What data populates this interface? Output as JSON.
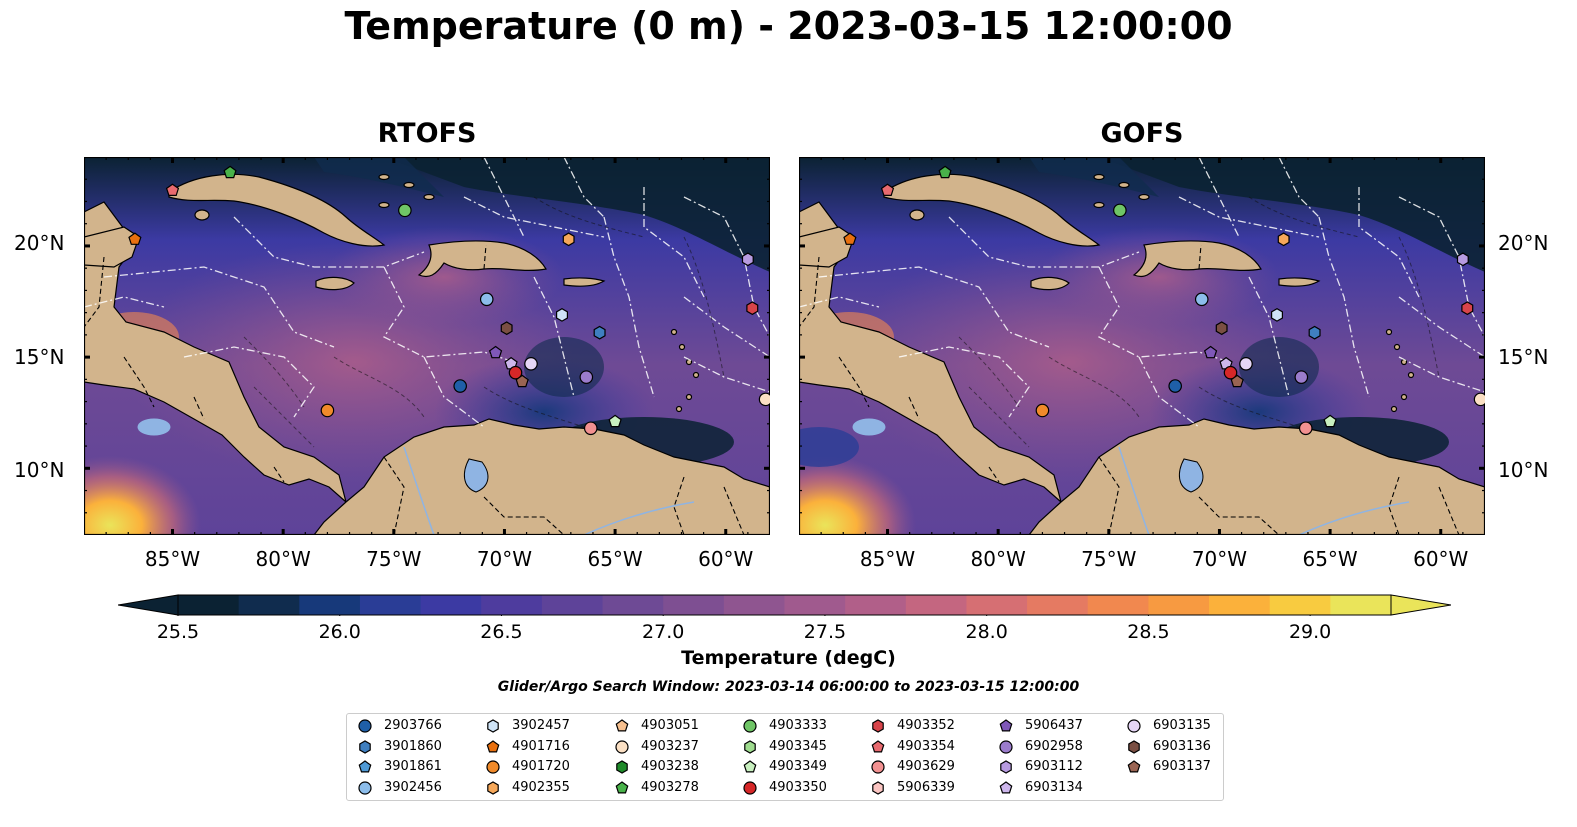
{
  "title": "Temperature (0 m) - 2023-03-15 12:00:00",
  "panels": [
    {
      "title": "RTOFS"
    },
    {
      "title": "GOFS"
    }
  ],
  "axes": {
    "x_ticks": [
      "85°W",
      "80°W",
      "75°W",
      "70°W",
      "65°W",
      "60°W"
    ],
    "x_tick_values": [
      -85,
      -80,
      -75,
      -70,
      -65,
      -60
    ],
    "y_ticks": [
      "20°N",
      "15°N",
      "10°N"
    ],
    "y_tick_values": [
      20,
      15,
      10
    ],
    "lon_range": [
      -89,
      -58
    ],
    "lat_range": [
      7,
      24
    ]
  },
  "colorbar": {
    "label": "Temperature (degC)",
    "ticks": [
      "25.5",
      "26.0",
      "26.5",
      "27.0",
      "27.5",
      "28.0",
      "28.5",
      "29.0"
    ],
    "tick_values": [
      25.5,
      26.0,
      26.5,
      27.0,
      27.5,
      28.0,
      28.5,
      29.0
    ],
    "range": [
      25.5,
      29.25
    ],
    "extend": "both",
    "colors": [
      "#0b2233",
      "#102c4e",
      "#17397a",
      "#2a3d96",
      "#3c3aa3",
      "#4e3c9e",
      "#5e4399",
      "#6e4a95",
      "#7e4f92",
      "#8f5590",
      "#a05a8e",
      "#b15f89",
      "#c46680",
      "#d66f73",
      "#e57a62",
      "#f1884f",
      "#f79a41",
      "#fbb13b",
      "#f8cb40",
      "#eae45a"
    ]
  },
  "search_window": "Glider/Argo Search Window: 2023-03-14 06:00:00 to 2023-03-15 12:00:00",
  "legend": [
    {
      "id": "2903766",
      "color": "#1f5fa8",
      "marker": "circle"
    },
    {
      "id": "3901860",
      "color": "#3f7fc0",
      "marker": "hexagon"
    },
    {
      "id": "3901861",
      "color": "#4f9ad6",
      "marker": "pentagon"
    },
    {
      "id": "3902456",
      "color": "#8cbdeb",
      "marker": "circle"
    },
    {
      "id": "3902457",
      "color": "#cfe4f7",
      "marker": "hexagon"
    },
    {
      "id": "4901716",
      "color": "#e8700f",
      "marker": "pentagon"
    },
    {
      "id": "4901720",
      "color": "#f08a2a",
      "marker": "circle"
    },
    {
      "id": "4902355",
      "color": "#f6a85a",
      "marker": "hexagon"
    },
    {
      "id": "4903051",
      "color": "#f7c08f",
      "marker": "pentagon"
    },
    {
      "id": "4903237",
      "color": "#fbe0c4",
      "marker": "circle"
    },
    {
      "id": "4903238",
      "color": "#1f8a2a",
      "marker": "hexagon"
    },
    {
      "id": "4903278",
      "color": "#49b24a",
      "marker": "pentagon"
    },
    {
      "id": "4903333",
      "color": "#6fc566",
      "marker": "circle"
    },
    {
      "id": "4903345",
      "color": "#9fdc8f",
      "marker": "hexagon"
    },
    {
      "id": "4903349",
      "color": "#c8f0bf",
      "marker": "pentagon"
    },
    {
      "id": "4903350",
      "color": "#d62728",
      "marker": "circle"
    },
    {
      "id": "4903352",
      "color": "#d8444a",
      "marker": "hexagon"
    },
    {
      "id": "4903354",
      "color": "#e86a6f",
      "marker": "pentagon"
    },
    {
      "id": "4903629",
      "color": "#f29191",
      "marker": "circle"
    },
    {
      "id": "5906339",
      "color": "#fbc5c2",
      "marker": "hexagon"
    },
    {
      "id": "5906437",
      "color": "#7f58b8",
      "marker": "pentagon"
    },
    {
      "id": "6902958",
      "color": "#9b7ccc",
      "marker": "circle"
    },
    {
      "id": "6903112",
      "color": "#b79be0",
      "marker": "hexagon"
    },
    {
      "id": "6903134",
      "color": "#cdb6ec",
      "marker": "pentagon"
    },
    {
      "id": "6903135",
      "color": "#e6d6f6",
      "marker": "circle"
    },
    {
      "id": "6903136",
      "color": "#7a4f43",
      "marker": "hexagon"
    },
    {
      "id": "6903137",
      "color": "#9a6453",
      "marker": "pentagon"
    }
  ],
  "floats_on_map": [
    {
      "id": "4903278",
      "lon": -82.4,
      "lat": 23.3
    },
    {
      "id": "4903354",
      "lon": -85.0,
      "lat": 22.5
    },
    {
      "id": "4901716",
      "lon": -86.7,
      "lat": 20.3
    },
    {
      "id": "4903333",
      "lon": -74.5,
      "lat": 21.6
    },
    {
      "id": "4902355",
      "lon": -67.1,
      "lat": 20.3
    },
    {
      "id": "6903112",
      "lon": -59.0,
      "lat": 19.4
    },
    {
      "id": "4903352",
      "lon": -58.8,
      "lat": 17.2
    },
    {
      "id": "3902456",
      "lon": -70.8,
      "lat": 17.6
    },
    {
      "id": "3902457",
      "lon": -67.4,
      "lat": 16.9
    },
    {
      "id": "3901860",
      "lon": -65.7,
      "lat": 16.1
    },
    {
      "id": "6903136",
      "lon": -69.9,
      "lat": 16.3
    },
    {
      "id": "5906437",
      "lon": -70.4,
      "lat": 15.2
    },
    {
      "id": "6903134",
      "lon": -69.7,
      "lat": 14.7
    },
    {
      "id": "6903135",
      "lon": -68.8,
      "lat": 14.7
    },
    {
      "id": "4903350",
      "lon": -69.5,
      "lat": 14.3
    },
    {
      "id": "6903137",
      "lon": -69.2,
      "lat": 13.9
    },
    {
      "id": "2903766",
      "lon": -72.0,
      "lat": 13.7
    },
    {
      "id": "6902958",
      "lon": -66.3,
      "lat": 14.1
    },
    {
      "id": "4901720",
      "lon": -78.0,
      "lat": 12.6
    },
    {
      "id": "4903629",
      "lon": -66.1,
      "lat": 11.8
    },
    {
      "id": "4903349",
      "lon": -65.0,
      "lat": 12.1
    },
    {
      "id": "4903237",
      "lon": -58.2,
      "lat": 13.1
    }
  ]
}
